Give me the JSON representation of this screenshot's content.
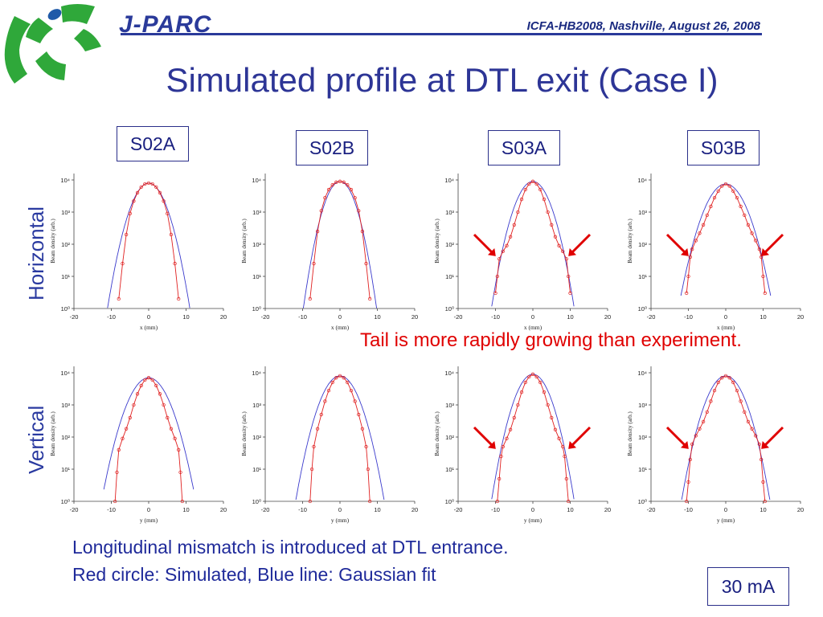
{
  "header": {
    "brand": "J-PARC",
    "conference": "ICFA-HB2008, Nashville, August 26, 2008",
    "title": "Simulated profile at DTL exit (Case I)"
  },
  "rows": [
    {
      "label": "Horizontal"
    },
    {
      "label": "Vertical"
    }
  ],
  "cases": [
    {
      "label": "S02A"
    },
    {
      "label": "S02B"
    },
    {
      "label": "S03A"
    },
    {
      "label": "S03B"
    }
  ],
  "annotation": {
    "tail_note": "Tail is more rapidly growing than experiment."
  },
  "footer": {
    "line1": "Longitudinal mismatch is introduced at DTL entrance.",
    "line2": "Red circle: Simulated, Blue line: Gaussian fit",
    "current": "30 mA"
  },
  "colors": {
    "title": "#2d3596",
    "simulated": "#e02020",
    "gaussian": "#3a3acc",
    "arrow": "#e00000",
    "note": "#e00000",
    "logo_green": "#2fa83a",
    "logo_blue": "#1f5aa8"
  },
  "chart_data": [
    {
      "type": "line",
      "id": "h-s02a",
      "ylabel": "Beam density (arb.)",
      "xlabel": "x (mm)",
      "xlim": [
        -20,
        20
      ],
      "ylim_log10": [
        0,
        4.2
      ],
      "x_ticks": [
        "-20",
        "-10",
        "0",
        "10",
        "20"
      ],
      "y_ticks": [
        "10⁰",
        "10¹",
        "10²",
        "10³",
        "10⁴"
      ],
      "gaussian": {
        "peak": 8000,
        "sigma": 2.6
      },
      "simulated": {
        "x": [
          -8,
          -7,
          -6,
          -5,
          -4,
          -3,
          -2,
          -1,
          0,
          1,
          2,
          3,
          4,
          5,
          6,
          7,
          8
        ],
        "y": [
          2,
          25,
          200,
          900,
          2200,
          4000,
          6000,
          7500,
          8000,
          7500,
          6000,
          4000,
          2200,
          900,
          200,
          25,
          2
        ]
      },
      "arrows": []
    },
    {
      "type": "line",
      "id": "h-s02b",
      "ylabel": "Beam density (arb.)",
      "xlabel": "x (mm)",
      "xlim": [
        -20,
        20
      ],
      "ylim_log10": [
        0,
        4.2
      ],
      "x_ticks": [
        "-20",
        "-10",
        "0",
        "10",
        "20"
      ],
      "y_ticks": [
        "10⁰",
        "10¹",
        "10²",
        "10³",
        "10⁴"
      ],
      "gaussian": {
        "peak": 9000,
        "sigma": 2.3
      },
      "simulated": {
        "x": [
          -8,
          -7,
          -6,
          -5,
          -4,
          -3,
          -2,
          -1,
          0,
          1,
          2,
          3,
          4,
          5,
          6,
          7,
          8
        ],
        "y": [
          2,
          25,
          250,
          1100,
          2800,
          5000,
          7000,
          8500,
          9000,
          8500,
          7000,
          5000,
          2800,
          1100,
          250,
          25,
          2
        ]
      },
      "arrows": []
    },
    {
      "type": "line",
      "id": "h-s03a",
      "ylabel": "Beam density (arb.)",
      "xlabel": "x (mm)",
      "xlim": [
        -20,
        20
      ],
      "ylim_log10": [
        0,
        4.2
      ],
      "x_ticks": [
        "-20",
        "-10",
        "0",
        "10",
        "20"
      ],
      "y_ticks": [
        "10⁰",
        "10¹",
        "10²",
        "10³",
        "10⁴"
      ],
      "gaussian": {
        "peak": 9000,
        "sigma": 2.6
      },
      "simulated": {
        "x": [
          -10,
          -9.5,
          -9,
          -8,
          -7,
          -6,
          -5,
          -4,
          -3,
          -2,
          -1,
          0,
          1,
          2,
          3,
          4,
          5,
          6,
          7,
          8,
          9,
          9.5,
          10
        ],
        "y": [
          3,
          10,
          35,
          60,
          90,
          170,
          400,
          1000,
          2500,
          5000,
          7500,
          9000,
          7500,
          5000,
          2500,
          1000,
          400,
          170,
          90,
          60,
          35,
          10,
          3
        ]
      },
      "arrows": [
        "left",
        "right"
      ]
    },
    {
      "type": "line",
      "id": "h-s03b",
      "ylabel": "Beam density (arb.)",
      "xlabel": "x (mm)",
      "xlim": [
        -20,
        20
      ],
      "ylim_log10": [
        0,
        4.2
      ],
      "x_ticks": [
        "-20",
        "-10",
        "0",
        "10",
        "20"
      ],
      "y_ticks": [
        "10⁰",
        "10¹",
        "10²",
        "10³",
        "10⁴"
      ],
      "gaussian": {
        "peak": 7500,
        "sigma": 3.0
      },
      "simulated": {
        "x": [
          -10.5,
          -10,
          -9.5,
          -9,
          -8,
          -7,
          -6,
          -5,
          -4,
          -3,
          -2,
          -1,
          0,
          1,
          2,
          3,
          4,
          5,
          6,
          7,
          8,
          9,
          9.5,
          10,
          10.5
        ],
        "y": [
          3,
          10,
          40,
          70,
          130,
          220,
          400,
          800,
          1500,
          2800,
          4500,
          6500,
          7500,
          6500,
          4500,
          2800,
          1500,
          800,
          400,
          220,
          130,
          70,
          40,
          10,
          3
        ]
      },
      "arrows": [
        "left",
        "right"
      ]
    },
    {
      "type": "line",
      "id": "v-s02a",
      "ylabel": "Beam density (arb.)",
      "xlabel": "y (mm)",
      "xlim": [
        -20,
        20
      ],
      "ylim_log10": [
        0,
        4.2
      ],
      "x_ticks": [
        "-20",
        "-10",
        "0",
        "10",
        "20"
      ],
      "y_ticks": [
        "10⁰",
        "10¹",
        "10²",
        "10³",
        "10⁴"
      ],
      "gaussian": {
        "peak": 7000,
        "sigma": 3.0
      },
      "simulated": {
        "x": [
          -9,
          -8.5,
          -8,
          -7,
          -6,
          -5,
          -4,
          -3,
          -2,
          -1,
          0,
          1,
          2,
          3,
          4,
          5,
          6,
          7,
          8,
          8.5,
          9
        ],
        "y": [
          1,
          8,
          40,
          90,
          180,
          400,
          1000,
          2200,
          4000,
          6000,
          7000,
          6000,
          4000,
          2200,
          1000,
          400,
          180,
          90,
          40,
          8,
          1
        ]
      },
      "arrows": []
    },
    {
      "type": "line",
      "id": "v-s02b",
      "ylabel": "Beam density (arb.)",
      "xlabel": "y (mm)",
      "xlim": [
        -20,
        20
      ],
      "ylim_log10": [
        0,
        4.2
      ],
      "x_ticks": [
        "-20",
        "-10",
        "0",
        "10",
        "20"
      ],
      "y_ticks": [
        "10⁰",
        "10¹",
        "10²",
        "10³",
        "10⁴"
      ],
      "gaussian": {
        "peak": 8000,
        "sigma": 2.8
      },
      "simulated": {
        "x": [
          -8,
          -7.5,
          -7,
          -6,
          -5,
          -4,
          -3,
          -2,
          -1,
          0,
          1,
          2,
          3,
          4,
          5,
          6,
          7,
          7.5,
          8
        ],
        "y": [
          1,
          10,
          50,
          180,
          500,
          1300,
          2800,
          5000,
          7000,
          8000,
          7000,
          5000,
          2800,
          1300,
          500,
          180,
          50,
          10,
          1
        ]
      },
      "arrows": []
    },
    {
      "type": "line",
      "id": "v-s03a",
      "ylabel": "Beam density (arb.)",
      "xlabel": "y (mm)",
      "xlim": [
        -20,
        20
      ],
      "ylim_log10": [
        0,
        4.2
      ],
      "x_ticks": [
        "-20",
        "-10",
        "0",
        "10",
        "20"
      ],
      "y_ticks": [
        "10⁰",
        "10¹",
        "10²",
        "10³",
        "10⁴"
      ],
      "gaussian": {
        "peak": 9000,
        "sigma": 2.6
      },
      "simulated": {
        "x": [
          -9.5,
          -9,
          -8.5,
          -8,
          -7,
          -6,
          -5,
          -4,
          -3,
          -2,
          -1,
          0,
          1,
          2,
          3,
          4,
          5,
          6,
          7,
          8,
          8.5,
          9,
          9.5
        ],
        "y": [
          1,
          5,
          25,
          50,
          90,
          170,
          400,
          1000,
          2500,
          5000,
          7500,
          9000,
          7500,
          5000,
          2500,
          1000,
          400,
          170,
          90,
          50,
          25,
          5,
          1
        ]
      },
      "arrows": [
        "left",
        "right"
      ]
    },
    {
      "type": "line",
      "id": "v-s03b",
      "ylabel": "Beam density (arb.)",
      "xlabel": "y (mm)",
      "xlim": [
        -20,
        20
      ],
      "ylim_log10": [
        0,
        4.2
      ],
      "x_ticks": [
        "-20",
        "-10",
        "0",
        "10",
        "20"
      ],
      "y_ticks": [
        "10⁰",
        "10¹",
        "10²",
        "10³",
        "10⁴"
      ],
      "gaussian": {
        "peak": 8000,
        "sigma": 2.8
      },
      "simulated": {
        "x": [
          -10.5,
          -10,
          -9.5,
          -9,
          -8,
          -7,
          -6,
          -5,
          -4,
          -3,
          -2,
          -1,
          0,
          1,
          2,
          3,
          4,
          5,
          6,
          7,
          8,
          9,
          9.5,
          10,
          10.5
        ],
        "y": [
          1,
          4,
          20,
          60,
          110,
          180,
          300,
          600,
          1300,
          2800,
          5000,
          7000,
          8000,
          7000,
          5000,
          2800,
          1300,
          600,
          300,
          180,
          110,
          60,
          20,
          4,
          1
        ]
      },
      "arrows": [
        "left",
        "right"
      ]
    }
  ]
}
